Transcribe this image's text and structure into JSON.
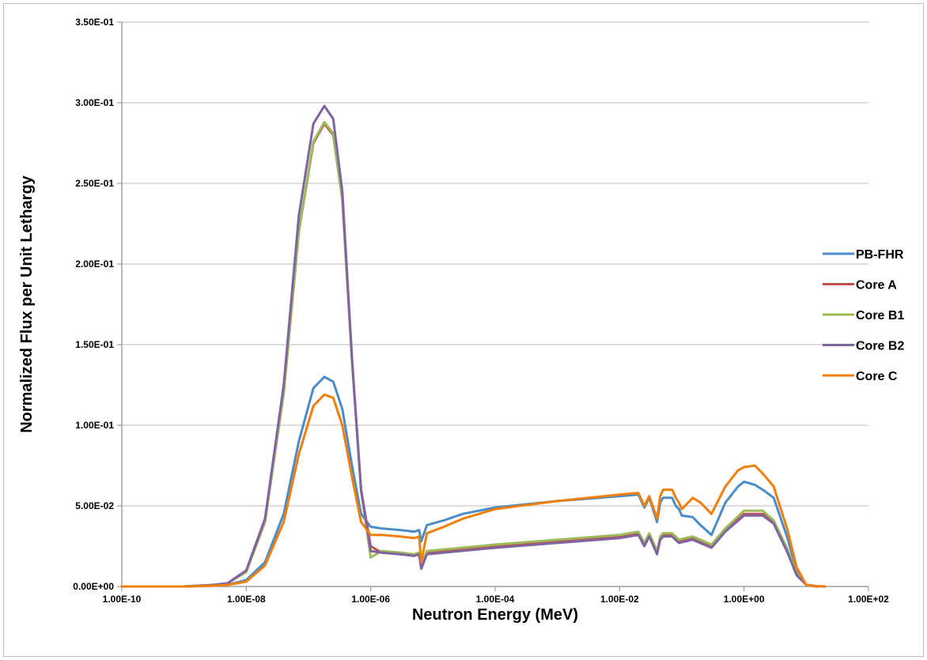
{
  "chart_data": {
    "type": "line",
    "title": "",
    "xlabel": "Neutron Energy (MeV)",
    "ylabel": "Normalized Flux per Unit Lethargy",
    "x_scale": "log",
    "xlim": [
      1e-10,
      100
    ],
    "ylim": [
      0,
      0.35
    ],
    "x_ticks": [
      1e-10,
      1e-08,
      1e-06,
      0.0001,
      0.01,
      1,
      100
    ],
    "x_tick_labels": [
      "1.00E-10",
      "1.00E-08",
      "1.00E-06",
      "1.00E-04",
      "1.00E-02",
      "1.00E+00",
      "1.00E+02"
    ],
    "y_ticks": [
      0,
      0.05,
      0.1,
      0.15,
      0.2,
      0.25,
      0.3,
      0.35
    ],
    "y_tick_labels": [
      "0.00E+00",
      "5.00E-02",
      "1.00E-01",
      "1.50E-01",
      "2.00E-01",
      "2.50E-01",
      "3.00E-01",
      "3.50E-01"
    ],
    "grid": "horizontal",
    "legend_position": "right",
    "series": [
      {
        "name": "PB-FHR",
        "color": "#4a8cc9",
        "x": [
          1e-10,
          1e-09,
          3e-09,
          5e-09,
          1e-08,
          2e-08,
          4e-08,
          7e-08,
          1.2e-07,
          1.8e-07,
          2.5e-07,
          3.5e-07,
          5e-07,
          7e-07,
          1e-06,
          1.5e-06,
          3e-06,
          5e-06,
          6e-06,
          6.5e-06,
          8e-06,
          1.5e-05,
          3e-05,
          0.0001,
          0.001,
          0.01,
          0.02,
          0.025,
          0.03,
          0.04,
          0.045,
          0.05,
          0.07,
          0.08,
          0.09,
          0.1,
          0.15,
          0.2,
          0.3,
          0.5,
          0.8,
          1,
          1.5,
          2,
          3,
          5,
          7,
          10.0,
          15.0,
          20.0
        ],
        "y": [
          0,
          0,
          0.0005,
          0.001,
          0.004,
          0.015,
          0.045,
          0.09,
          0.123,
          0.13,
          0.127,
          0.11,
          0.075,
          0.045,
          0.037,
          0.036,
          0.035,
          0.034,
          0.035,
          0.028,
          0.038,
          0.041,
          0.045,
          0.049,
          0.053,
          0.056,
          0.057,
          0.049,
          0.055,
          0.04,
          0.052,
          0.055,
          0.055,
          0.05,
          0.048,
          0.044,
          0.043,
          0.038,
          0.032,
          0.052,
          0.062,
          0.065,
          0.063,
          0.06,
          0.055,
          0.03,
          0.01,
          0.001,
          0.0002,
          0
        ]
      },
      {
        "name": "Core A",
        "color": "#c0504d",
        "x": [
          1e-10,
          1e-09,
          3e-09,
          5e-09,
          1e-08,
          2e-08,
          4e-08,
          7e-08,
          1.2e-07,
          1.8e-07,
          2.5e-07,
          3.5e-07,
          5e-07,
          7e-07,
          1e-06,
          1.5e-06,
          3e-06,
          5e-06,
          6e-06,
          6.5e-06,
          8e-06,
          1.5e-05,
          0.0001,
          0.001,
          0.01,
          0.02,
          0.025,
          0.03,
          0.04,
          0.045,
          0.05,
          0.07,
          0.09,
          0.15,
          0.3,
          0.5,
          1,
          2,
          3,
          5,
          7,
          10.0,
          15.0
        ],
        "y": [
          0,
          0,
          0.001,
          0.002,
          0.009,
          0.04,
          0.12,
          0.22,
          0.275,
          0.287,
          0.28,
          0.24,
          0.14,
          0.06,
          0.025,
          0.021,
          0.02,
          0.019,
          0.02,
          0.012,
          0.021,
          0.022,
          0.025,
          0.028,
          0.031,
          0.033,
          0.026,
          0.032,
          0.021,
          0.03,
          0.032,
          0.032,
          0.028,
          0.03,
          0.025,
          0.035,
          0.045,
          0.045,
          0.04,
          0.022,
          0.008,
          0.001,
          0
        ]
      },
      {
        "name": "Core B1",
        "color": "#9bbb59",
        "x": [
          1e-10,
          1e-09,
          3e-09,
          5e-09,
          1e-08,
          2e-08,
          4e-08,
          7e-08,
          1.2e-07,
          1.8e-07,
          2.5e-07,
          3.5e-07,
          5e-07,
          7e-07,
          1e-06,
          1.5e-06,
          3e-06,
          5e-06,
          6e-06,
          6.5e-06,
          8e-06,
          1.5e-05,
          0.0001,
          0.001,
          0.01,
          0.02,
          0.025,
          0.03,
          0.04,
          0.045,
          0.05,
          0.07,
          0.09,
          0.15,
          0.3,
          0.5,
          1,
          2,
          3,
          5,
          7,
          10.0,
          15.0
        ],
        "y": [
          0,
          0,
          0.001,
          0.002,
          0.009,
          0.04,
          0.12,
          0.22,
          0.276,
          0.288,
          0.281,
          0.24,
          0.14,
          0.06,
          0.018,
          0.022,
          0.021,
          0.02,
          0.021,
          0.013,
          0.022,
          0.023,
          0.026,
          0.029,
          0.032,
          0.034,
          0.027,
          0.033,
          0.022,
          0.031,
          0.033,
          0.033,
          0.029,
          0.031,
          0.026,
          0.036,
          0.047,
          0.047,
          0.041,
          0.023,
          0.008,
          0.001,
          0
        ]
      },
      {
        "name": "Core B2",
        "color": "#8064a2",
        "x": [
          1e-10,
          1e-09,
          3e-09,
          5e-09,
          1e-08,
          2e-08,
          4e-08,
          7e-08,
          1.2e-07,
          1.8e-07,
          2.5e-07,
          3.5e-07,
          5e-07,
          7e-07,
          1e-06,
          1.5e-06,
          3e-06,
          5e-06,
          6e-06,
          6.5e-06,
          8e-06,
          1.5e-05,
          0.0001,
          0.001,
          0.01,
          0.02,
          0.025,
          0.03,
          0.04,
          0.045,
          0.05,
          0.07,
          0.09,
          0.15,
          0.3,
          0.5,
          1,
          2,
          3,
          5,
          7,
          10.0,
          15.0
        ],
        "y": [
          0,
          0,
          0.001,
          0.002,
          0.01,
          0.042,
          0.125,
          0.23,
          0.287,
          0.298,
          0.29,
          0.245,
          0.142,
          0.06,
          0.022,
          0.021,
          0.02,
          0.019,
          0.02,
          0.011,
          0.02,
          0.021,
          0.024,
          0.027,
          0.03,
          0.032,
          0.025,
          0.031,
          0.02,
          0.029,
          0.031,
          0.031,
          0.027,
          0.029,
          0.024,
          0.034,
          0.044,
          0.044,
          0.039,
          0.021,
          0.007,
          0.001,
          0
        ]
      },
      {
        "name": "Core C",
        "color": "#f07f09",
        "x": [
          1e-10,
          1e-09,
          3e-09,
          5e-09,
          1e-08,
          2e-08,
          4e-08,
          7e-08,
          1.2e-07,
          1.8e-07,
          2.5e-07,
          3.5e-07,
          5e-07,
          7e-07,
          1e-06,
          1.5e-06,
          3e-06,
          5e-06,
          6e-06,
          6.5e-06,
          8e-06,
          1.5e-05,
          3e-05,
          0.0001,
          0.001,
          0.01,
          0.02,
          0.025,
          0.03,
          0.04,
          0.045,
          0.05,
          0.07,
          0.08,
          0.09,
          0.1,
          0.15,
          0.2,
          0.3,
          0.5,
          0.8,
          1,
          1.5,
          2,
          3,
          5,
          7,
          10.0,
          15.0,
          20.0
        ],
        "y": [
          0,
          0,
          0.0005,
          0.001,
          0.003,
          0.013,
          0.04,
          0.082,
          0.112,
          0.119,
          0.117,
          0.1,
          0.068,
          0.04,
          0.032,
          0.032,
          0.031,
          0.03,
          0.031,
          0.015,
          0.033,
          0.037,
          0.042,
          0.048,
          0.053,
          0.057,
          0.058,
          0.05,
          0.056,
          0.042,
          0.056,
          0.06,
          0.06,
          0.055,
          0.052,
          0.048,
          0.055,
          0.052,
          0.045,
          0.062,
          0.072,
          0.074,
          0.075,
          0.07,
          0.062,
          0.035,
          0.012,
          0.001,
          0.0002,
          0
        ]
      }
    ]
  }
}
